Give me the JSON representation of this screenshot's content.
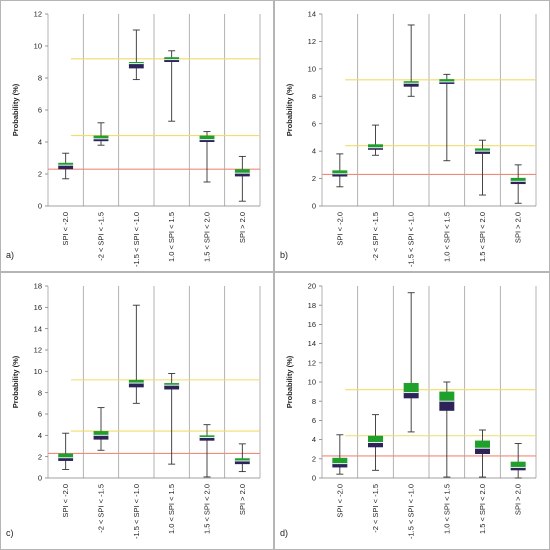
{
  "colors": {
    "box_low": "#2d2358",
    "box_high": "#1fa02a",
    "median": "#e9f1f7",
    "ref_low": "#f08a7a",
    "ref_high": "#f2dc6a",
    "whisker": "#333333"
  },
  "chart_data": [
    {
      "type": "box",
      "panel_label": "a)",
      "ylabel": "Probability (%)",
      "ylim": [
        0,
        12
      ],
      "yticks": [
        0,
        2,
        4,
        6,
        8,
        10,
        12
      ],
      "categories": [
        "SPI < -2.0",
        "-2 < SPI < -1.5",
        "-1.5 < SPI < -1.0",
        "1.0 < SPI < 1.5",
        "1.5 < SPI < 2.0",
        "SPI > 2.0"
      ],
      "boxes": [
        {
          "min": 1.7,
          "q1": 2.3,
          "median": 2.55,
          "q3": 2.7,
          "max": 3.3
        },
        {
          "min": 3.8,
          "q1": 4.05,
          "median": 4.2,
          "q3": 4.4,
          "max": 5.2
        },
        {
          "min": 7.9,
          "q1": 8.6,
          "median": 8.9,
          "q3": 9.0,
          "max": 11.0
        },
        {
          "min": 5.3,
          "q1": 9.0,
          "median": 9.15,
          "q3": 9.3,
          "max": 9.7
        },
        {
          "min": 1.5,
          "q1": 4.0,
          "median": 4.15,
          "q3": 4.4,
          "max": 4.65
        },
        {
          "min": 0.3,
          "q1": 1.85,
          "median": 2.05,
          "q3": 2.3,
          "max": 3.1
        }
      ],
      "reference_lines": [
        2.3,
        4.4,
        9.2
      ]
    },
    {
      "type": "box",
      "panel_label": "b)",
      "ylabel": "Probability (%)",
      "ylim": [
        0,
        14
      ],
      "yticks": [
        0,
        2,
        4,
        6,
        8,
        10,
        12,
        14
      ],
      "categories": [
        "SPI < -2.0",
        "-2 < SPI < -1.5",
        "-1.5 < SPI < -1.0",
        "1.0 < SPI < 1.5",
        "1.5 < SPI < 2.0",
        "SPI > 2.0"
      ],
      "boxes": [
        {
          "min": 1.4,
          "q1": 2.15,
          "median": 2.35,
          "q3": 2.6,
          "max": 3.8
        },
        {
          "min": 3.7,
          "q1": 4.1,
          "median": 4.25,
          "q3": 4.5,
          "max": 5.9
        },
        {
          "min": 8.0,
          "q1": 8.7,
          "median": 8.95,
          "q3": 9.1,
          "max": 13.2
        },
        {
          "min": 3.3,
          "q1": 8.9,
          "median": 9.05,
          "q3": 9.25,
          "max": 9.6
        },
        {
          "min": 0.8,
          "q1": 3.8,
          "median": 4.0,
          "q3": 4.2,
          "max": 4.8
        },
        {
          "min": 0.2,
          "q1": 1.6,
          "median": 1.8,
          "q3": 2.05,
          "max": 3.0
        }
      ],
      "reference_lines": [
        2.3,
        4.4,
        9.2
      ]
    },
    {
      "type": "box",
      "panel_label": "c)",
      "ylabel": "Probability (%)",
      "ylim": [
        0,
        18
      ],
      "yticks": [
        0,
        2,
        4,
        6,
        8,
        10,
        12,
        14,
        16,
        18
      ],
      "categories": [
        "SPI < -2.0",
        "-2 < SPI < -1.5",
        "-1.5 < SPI < -1.0",
        "1.0 < SPI < 1.5",
        "1.5 < SPI < 2.0",
        "SPI > 2.0"
      ],
      "boxes": [
        {
          "min": 0.8,
          "q1": 1.6,
          "median": 1.9,
          "q3": 2.3,
          "max": 4.2
        },
        {
          "min": 2.6,
          "q1": 3.6,
          "median": 4.0,
          "q3": 4.4,
          "max": 6.6
        },
        {
          "min": 7.0,
          "q1": 8.5,
          "median": 8.9,
          "q3": 9.2,
          "max": 16.2
        },
        {
          "min": 1.3,
          "q1": 8.3,
          "median": 8.7,
          "q3": 8.9,
          "max": 9.8
        },
        {
          "min": 0.1,
          "q1": 3.5,
          "median": 3.8,
          "q3": 4.0,
          "max": 5.0
        },
        {
          "min": 0.6,
          "q1": 1.3,
          "median": 1.6,
          "q3": 1.85,
          "max": 3.2
        }
      ],
      "reference_lines": [
        2.3,
        4.4,
        9.2
      ]
    },
    {
      "type": "box",
      "panel_label": "d)",
      "ylabel": "Probability (%)",
      "ylim": [
        0,
        20
      ],
      "yticks": [
        0,
        2,
        4,
        6,
        8,
        10,
        12,
        14,
        16,
        18,
        20
      ],
      "categories": [
        "SPI < -2.0",
        "-2 < SPI < -1.5",
        "-1.5 < SPI < -1.0",
        "1.0 < SPI < 1.5",
        "1.5 < SPI < 2.0",
        "SPI > 2.0"
      ],
      "boxes": [
        {
          "min": 0.4,
          "q1": 1.1,
          "median": 1.5,
          "q3": 2.1,
          "max": 4.5
        },
        {
          "min": 0.8,
          "q1": 3.2,
          "median": 3.7,
          "q3": 4.4,
          "max": 6.6
        },
        {
          "min": 4.8,
          "q1": 8.3,
          "median": 8.9,
          "q3": 9.9,
          "max": 19.3
        },
        {
          "min": 0.1,
          "q1": 7.0,
          "median": 8.0,
          "q3": 9.0,
          "max": 10.0
        },
        {
          "min": 0.1,
          "q1": 2.5,
          "median": 3.1,
          "q3": 3.9,
          "max": 5.0
        },
        {
          "min": 0.0,
          "q1": 0.8,
          "median": 1.1,
          "q3": 1.7,
          "max": 3.6
        }
      ],
      "reference_lines": [
        2.3,
        4.4,
        9.2
      ]
    }
  ]
}
